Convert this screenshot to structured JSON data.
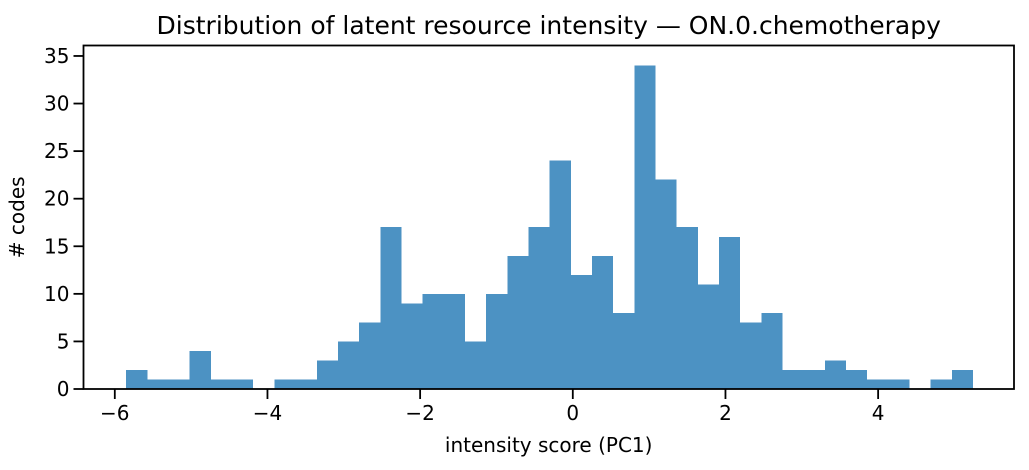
{
  "figure": {
    "title": "Distribution of latent resource intensity — ON.0.chemotherapy",
    "xlabel": "intensity score (PC1)",
    "ylabel": "# codes"
  },
  "chart_data": {
    "type": "bar",
    "subtype": "histogram",
    "title": "Distribution of latent resource intensity — ON.0.chemotherapy",
    "xlabel": "intensity score (PC1)",
    "ylabel": "# codes",
    "bin_start": -5.85,
    "bin_width": 0.2773,
    "counts": [
      2,
      1,
      1,
      4,
      1,
      1,
      0,
      1,
      1,
      3,
      5,
      7,
      17,
      9,
      10,
      10,
      5,
      10,
      14,
      17,
      24,
      12,
      14,
      8,
      34,
      22,
      17,
      11,
      16,
      7,
      8,
      2,
      2,
      3,
      2,
      1,
      1,
      0,
      1,
      2
    ],
    "total_count": 306,
    "xlim": [
      -6.41,
      5.78
    ],
    "ylim": [
      0,
      36.1
    ],
    "xticks": [
      -6,
      -4,
      -2,
      0,
      2,
      4
    ],
    "xtick_labels": [
      "−6",
      "−4",
      "−2",
      "0",
      "2",
      "4"
    ],
    "yticks": [
      0,
      5,
      10,
      15,
      20,
      25,
      30,
      35
    ],
    "ytick_labels": [
      "0",
      "5",
      "10",
      "15",
      "20",
      "25",
      "30",
      "35"
    ],
    "grid": false,
    "legend": null,
    "bar_color": "#4c92c3",
    "axis_color": "#000000",
    "background_color": "#ffffff"
  }
}
